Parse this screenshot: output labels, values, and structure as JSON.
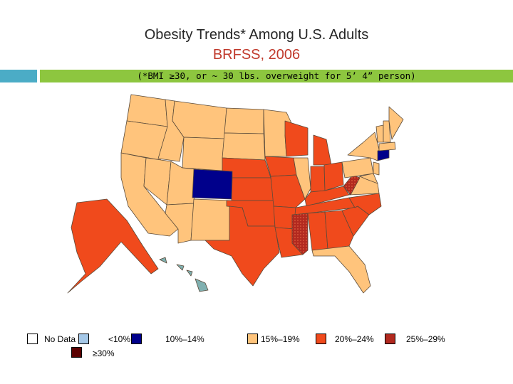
{
  "title": "Obesity Trends* Among U.S. Adults",
  "subtitle": "BRFSS, 2006",
  "footnote": "(*BMI ≥30, or ~ 30 lbs. overweight for 5’ 4” person)",
  "legend": [
    {
      "label": "No Data",
      "color": "#ffffff"
    },
    {
      "label": "<10%",
      "color": "#a5c8e8"
    },
    {
      "label": "10%–14%",
      "color": "#00008b"
    },
    {
      "label": "15%–19%",
      "color": "#ffc47c"
    },
    {
      "label": "20%–24%",
      "color": "#f04a1c"
    },
    {
      "label": "25%–29%",
      "color": "#b2291f"
    },
    {
      "label": "≥30%",
      "color": "#5a0000"
    }
  ],
  "colors": {
    "band_teal": "#4bacc6",
    "band_green": "#8dc63f",
    "hawaii": "#7fb0b0"
  }
}
